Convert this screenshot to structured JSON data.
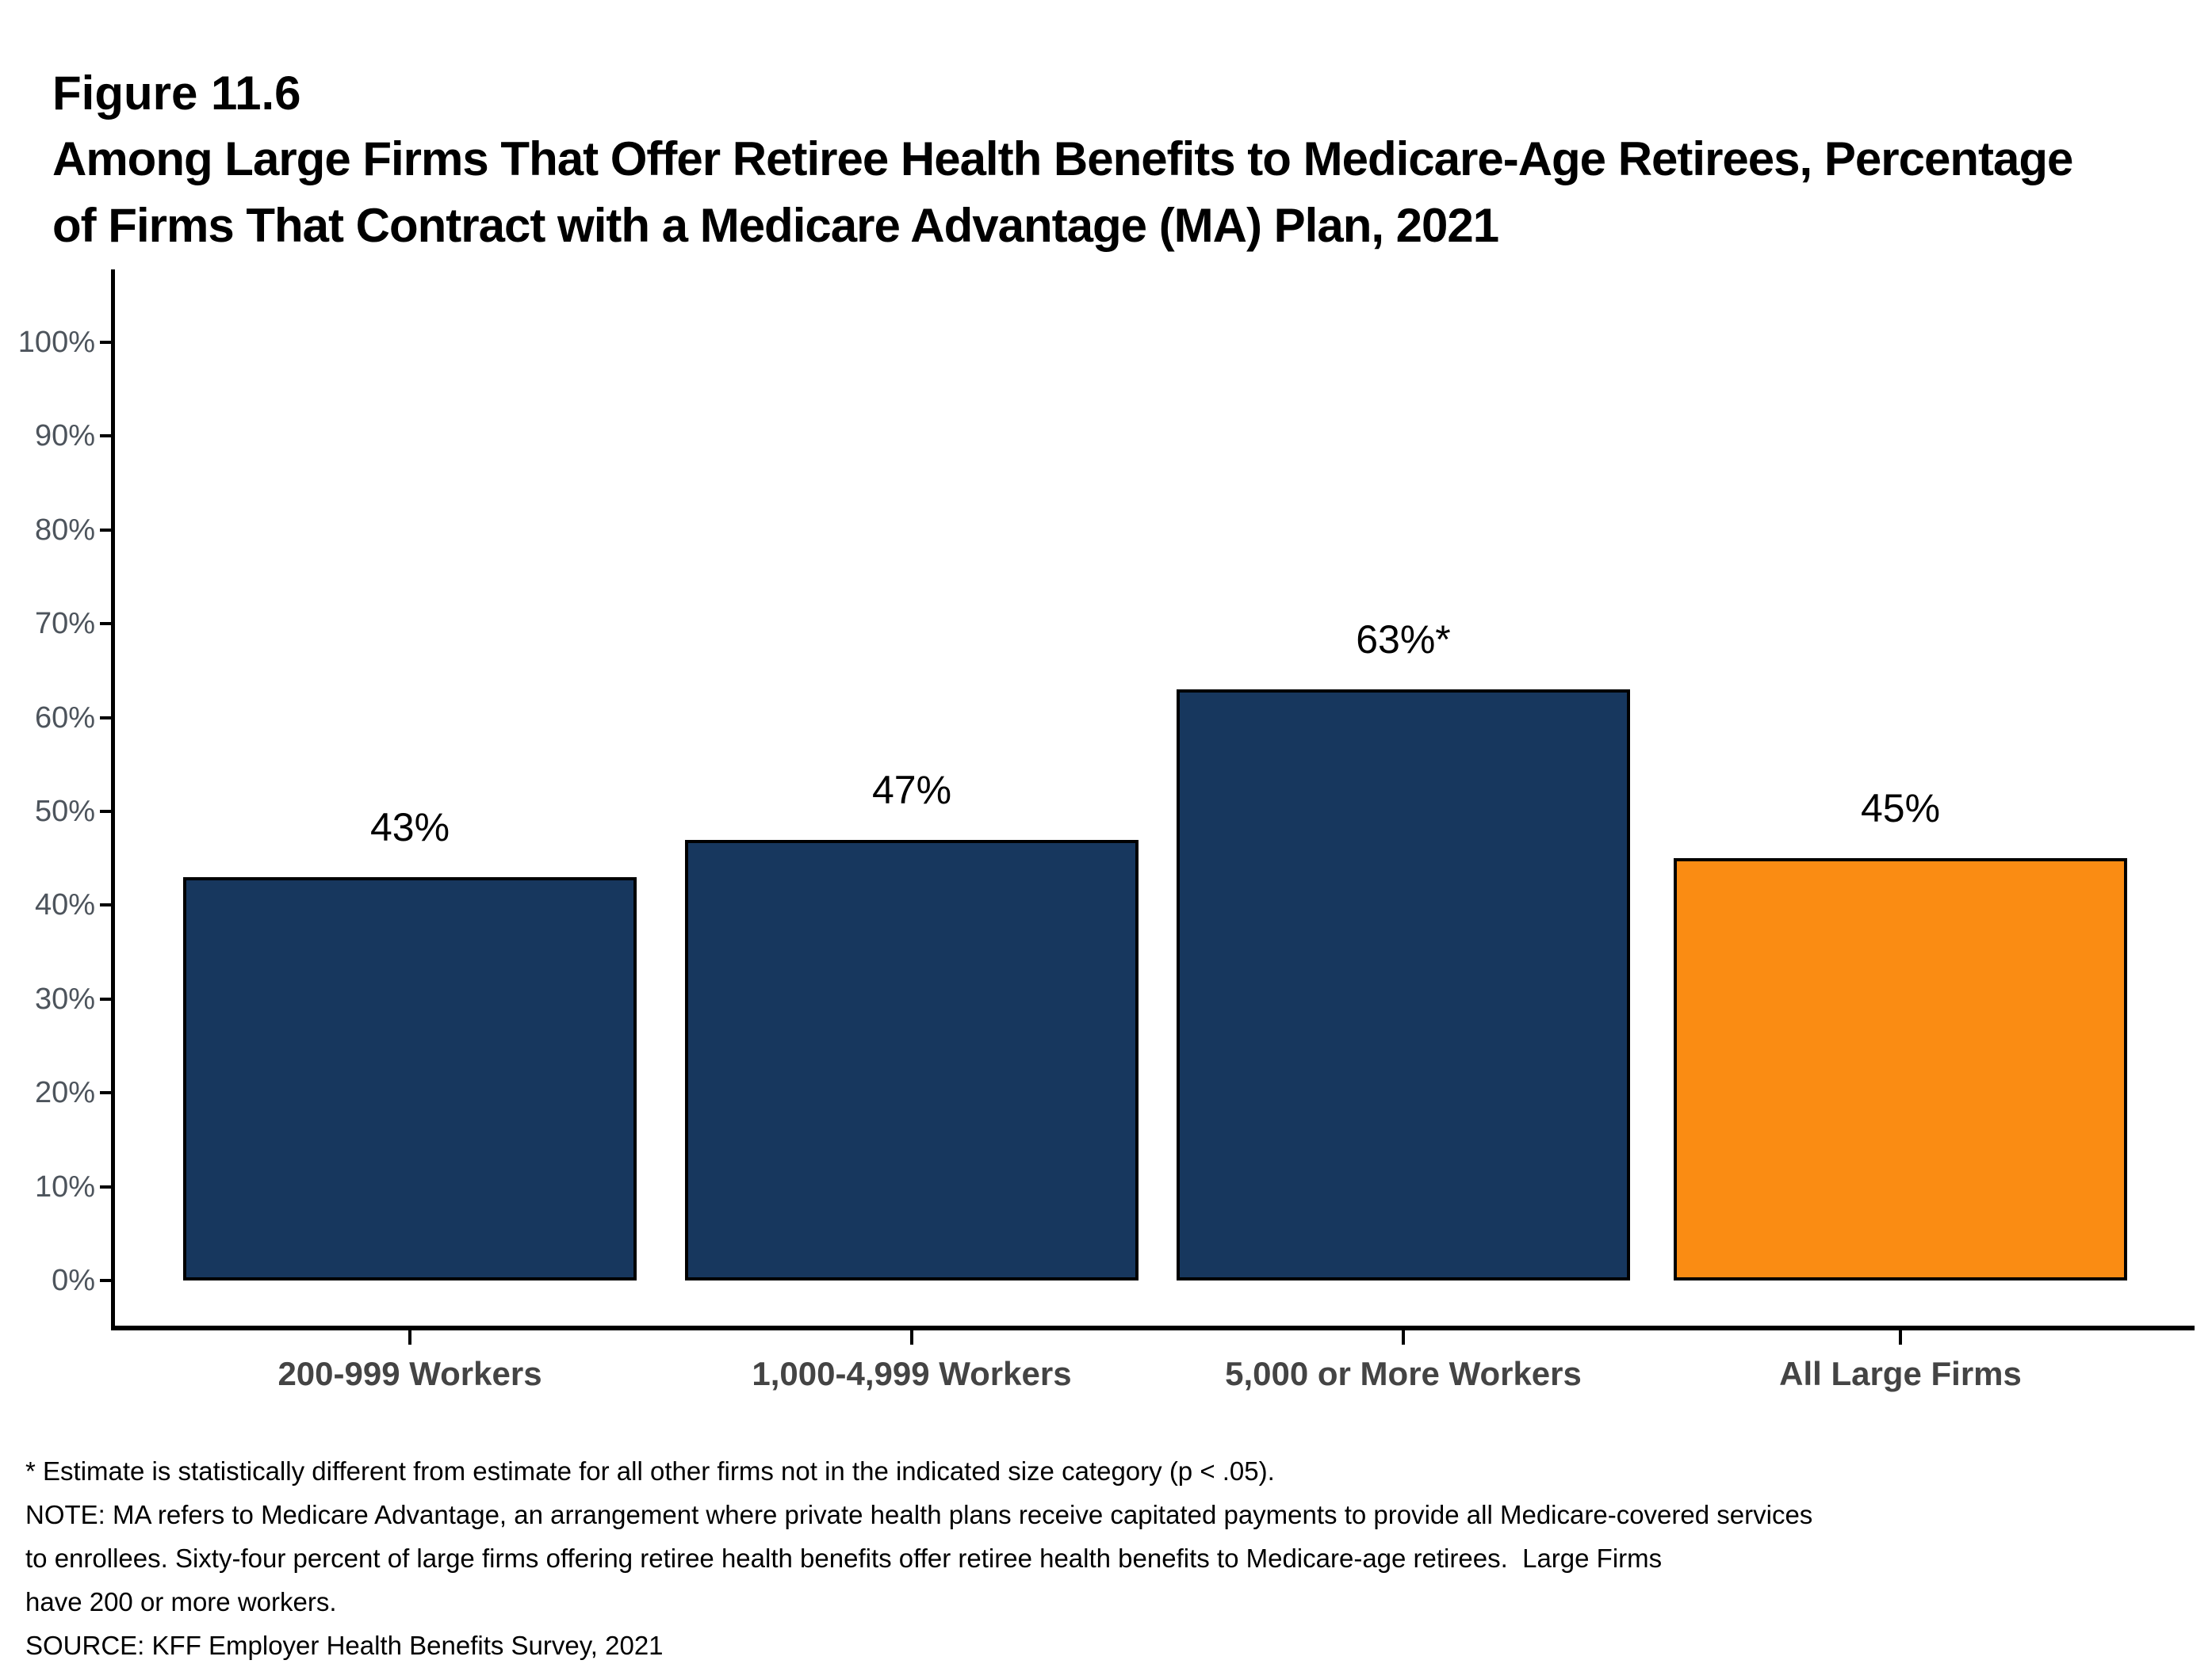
{
  "header": {
    "figure_label": "Figure 11.6",
    "title_line1": "Among Large Firms That Offer Retiree Health Benefits to Medicare-Age Retirees, Percentage",
    "title_line2": "of Firms That Contract with a Medicare Advantage (MA) Plan, 2021"
  },
  "chart_data": {
    "type": "bar",
    "title": "Among Large Firms That Offer Retiree Health Benefits to Medicare-Age Retirees, Percentage of Firms That Contract with a Medicare Advantage (MA) Plan, 2021",
    "figure_number": "Figure 11.6",
    "categories": [
      "200-999 Workers",
      "1,000-4,999 Workers",
      "5,000 or More Workers",
      "All Large Firms"
    ],
    "values": [
      43,
      47,
      63,
      45
    ],
    "bar_labels": [
      "43%",
      "47%",
      "63%*",
      "45%"
    ],
    "xlabel": "",
    "ylabel": "",
    "ylim": [
      0,
      100
    ],
    "ytick_step": 10,
    "ytick_labels": [
      "0%",
      "10%",
      "20%",
      "30%",
      "40%",
      "50%",
      "60%",
      "70%",
      "80%",
      "90%",
      "100%"
    ],
    "grid": false,
    "legend_position": "none",
    "bar_colors": [
      "#17375E",
      "#17375E",
      "#17375E",
      "#FA8C13"
    ],
    "bar_border_color": "#000000",
    "accent_navy": "#17375E",
    "accent_orange": "#FA8C13"
  },
  "footnotes": {
    "lines": [
      "* Estimate is statistically different from estimate for all other firms not in the indicated size category (p < .05).",
      "NOTE: MA refers to Medicare Advantage, an arrangement where private health plans receive capitated payments to provide all Medicare-covered services",
      "to enrollees. Sixty-four percent of large firms offering retiree health benefits offer retiree health benefits to Medicare-age retirees.  Large Firms",
      "have 200 or more workers.",
      "SOURCE: KFF Employer Health Benefits Survey, 2021"
    ]
  }
}
